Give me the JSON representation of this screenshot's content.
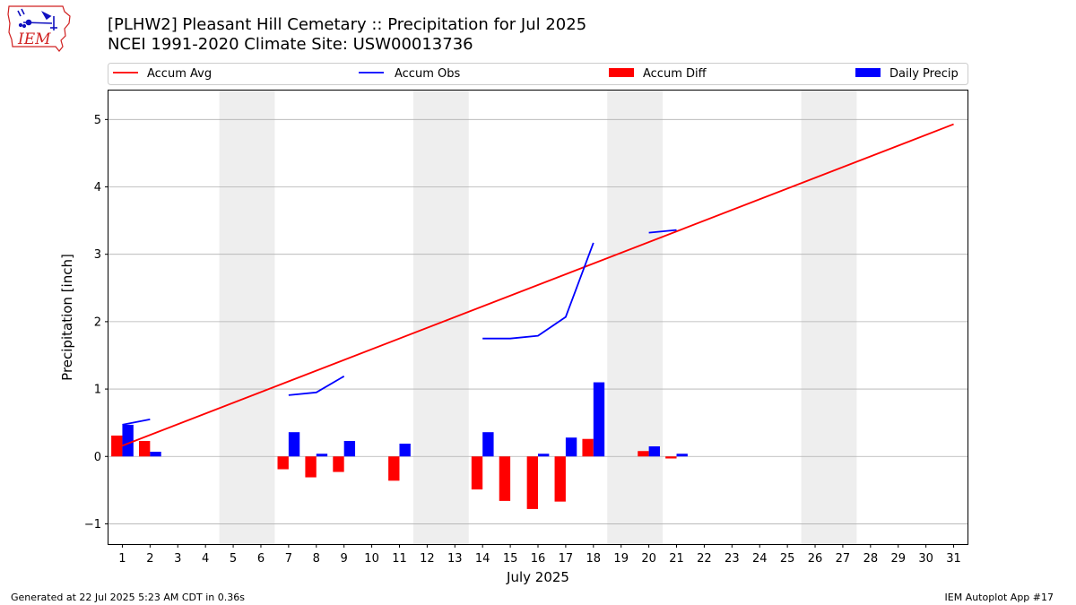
{
  "header": {
    "title_line1": "[PLHW2] Pleasant Hill Cemetary :: Precipitation for Jul 2025",
    "title_line2": "NCEI 1991-2020 Climate Site: USW00013736"
  },
  "logo": {
    "text": "IEM"
  },
  "footer": {
    "generated": "Generated at 22 Jul 2025 5:23 AM CDT in 0.36s",
    "app": "IEM Autoplot App #17"
  },
  "colors": {
    "accum_avg": "#ff0000",
    "accum_obs": "#0000ff",
    "accum_diff": "#ff0000",
    "daily_precip": "#0000ff",
    "weekend_shade": "#eeeeee",
    "grid": "#b0b0b0"
  },
  "chart_data": {
    "type": "bar",
    "xlabel": "July 2025",
    "ylabel": "Precipitation [inch]",
    "xlim": [
      0.5,
      31.5
    ],
    "ylim": [
      -1.3,
      5.43
    ],
    "yticks": [
      -1,
      0,
      1,
      2,
      3,
      4,
      5
    ],
    "ytick_labels": [
      "−1",
      "0",
      "1",
      "2",
      "3",
      "4",
      "5"
    ],
    "days": [
      1,
      2,
      3,
      4,
      5,
      6,
      7,
      8,
      9,
      10,
      11,
      12,
      13,
      14,
      15,
      16,
      17,
      18,
      19,
      20,
      21,
      22,
      23,
      24,
      25,
      26,
      27,
      28,
      29,
      30,
      31
    ],
    "grid": "horizontal",
    "legend_placement": "top",
    "shaded_days": [
      [
        5,
        6
      ],
      [
        12,
        13
      ],
      [
        19,
        20
      ],
      [
        26,
        27
      ]
    ],
    "series": [
      {
        "name": "Accum Avg",
        "kind": "line",
        "x": [
          1,
          31
        ],
        "y": [
          0.16,
          4.93
        ]
      },
      {
        "name": "Accum Obs",
        "kind": "line",
        "segments": [
          {
            "x": [
              1,
              2
            ],
            "y": [
              0.47,
              0.55
            ]
          },
          {
            "x": [
              7,
              8,
              9
            ],
            "y": [
              0.91,
              0.95,
              1.19
            ]
          },
          {
            "x": [
              14,
              15,
              16,
              17,
              18
            ],
            "y": [
              1.75,
              1.75,
              1.79,
              2.07,
              3.17
            ]
          },
          {
            "x": [
              20,
              21
            ],
            "y": [
              3.32,
              3.36
            ]
          }
        ]
      },
      {
        "name": "Accum Diff",
        "kind": "bar",
        "x": [
          1,
          2,
          7,
          8,
          9,
          11,
          14,
          15,
          16,
          17,
          18,
          20,
          21
        ],
        "y": [
          0.31,
          0.23,
          -0.19,
          -0.31,
          -0.23,
          -0.36,
          -0.49,
          -0.66,
          -0.78,
          -0.67,
          0.26,
          0.08,
          -0.03
        ]
      },
      {
        "name": "Daily Precip",
        "kind": "bar",
        "x": [
          1,
          2,
          7,
          8,
          9,
          11,
          14,
          16,
          17,
          18,
          20,
          21
        ],
        "y": [
          0.47,
          0.07,
          0.36,
          0.04,
          0.23,
          0.19,
          0.36,
          0.04,
          0.28,
          1.1,
          0.15,
          0.04
        ]
      }
    ]
  }
}
